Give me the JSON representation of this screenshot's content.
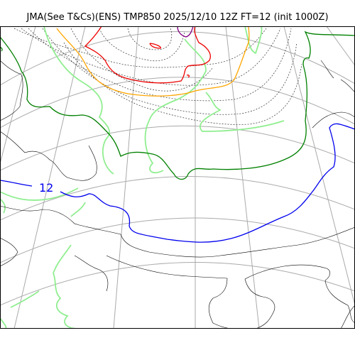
{
  "map": {
    "title": "JMA(See T&Cs)(ENS) TMP850 2025/12/10 12Z FT=12 (init 1000Z)",
    "model": "JMA ENS",
    "variable": "TMP850",
    "valid_time": "2025/12/10 12Z",
    "forecast_hour": "FT=12",
    "init_time": "1000Z"
  },
  "contours": {
    "labels": [
      {
        "value": "12",
        "color": "#0000ee"
      }
    ],
    "colors": {
      "coastline": "#000000",
      "gridlines": "#aaaaaa",
      "contour_blue": "#0000ee",
      "contour_green": "#008000",
      "contour_lightgreen": "#90ee90",
      "contour_orange": "#ffa500",
      "contour_red": "#ee0000",
      "contour_purple": "#800080",
      "contour_dotted": "#333333"
    }
  }
}
